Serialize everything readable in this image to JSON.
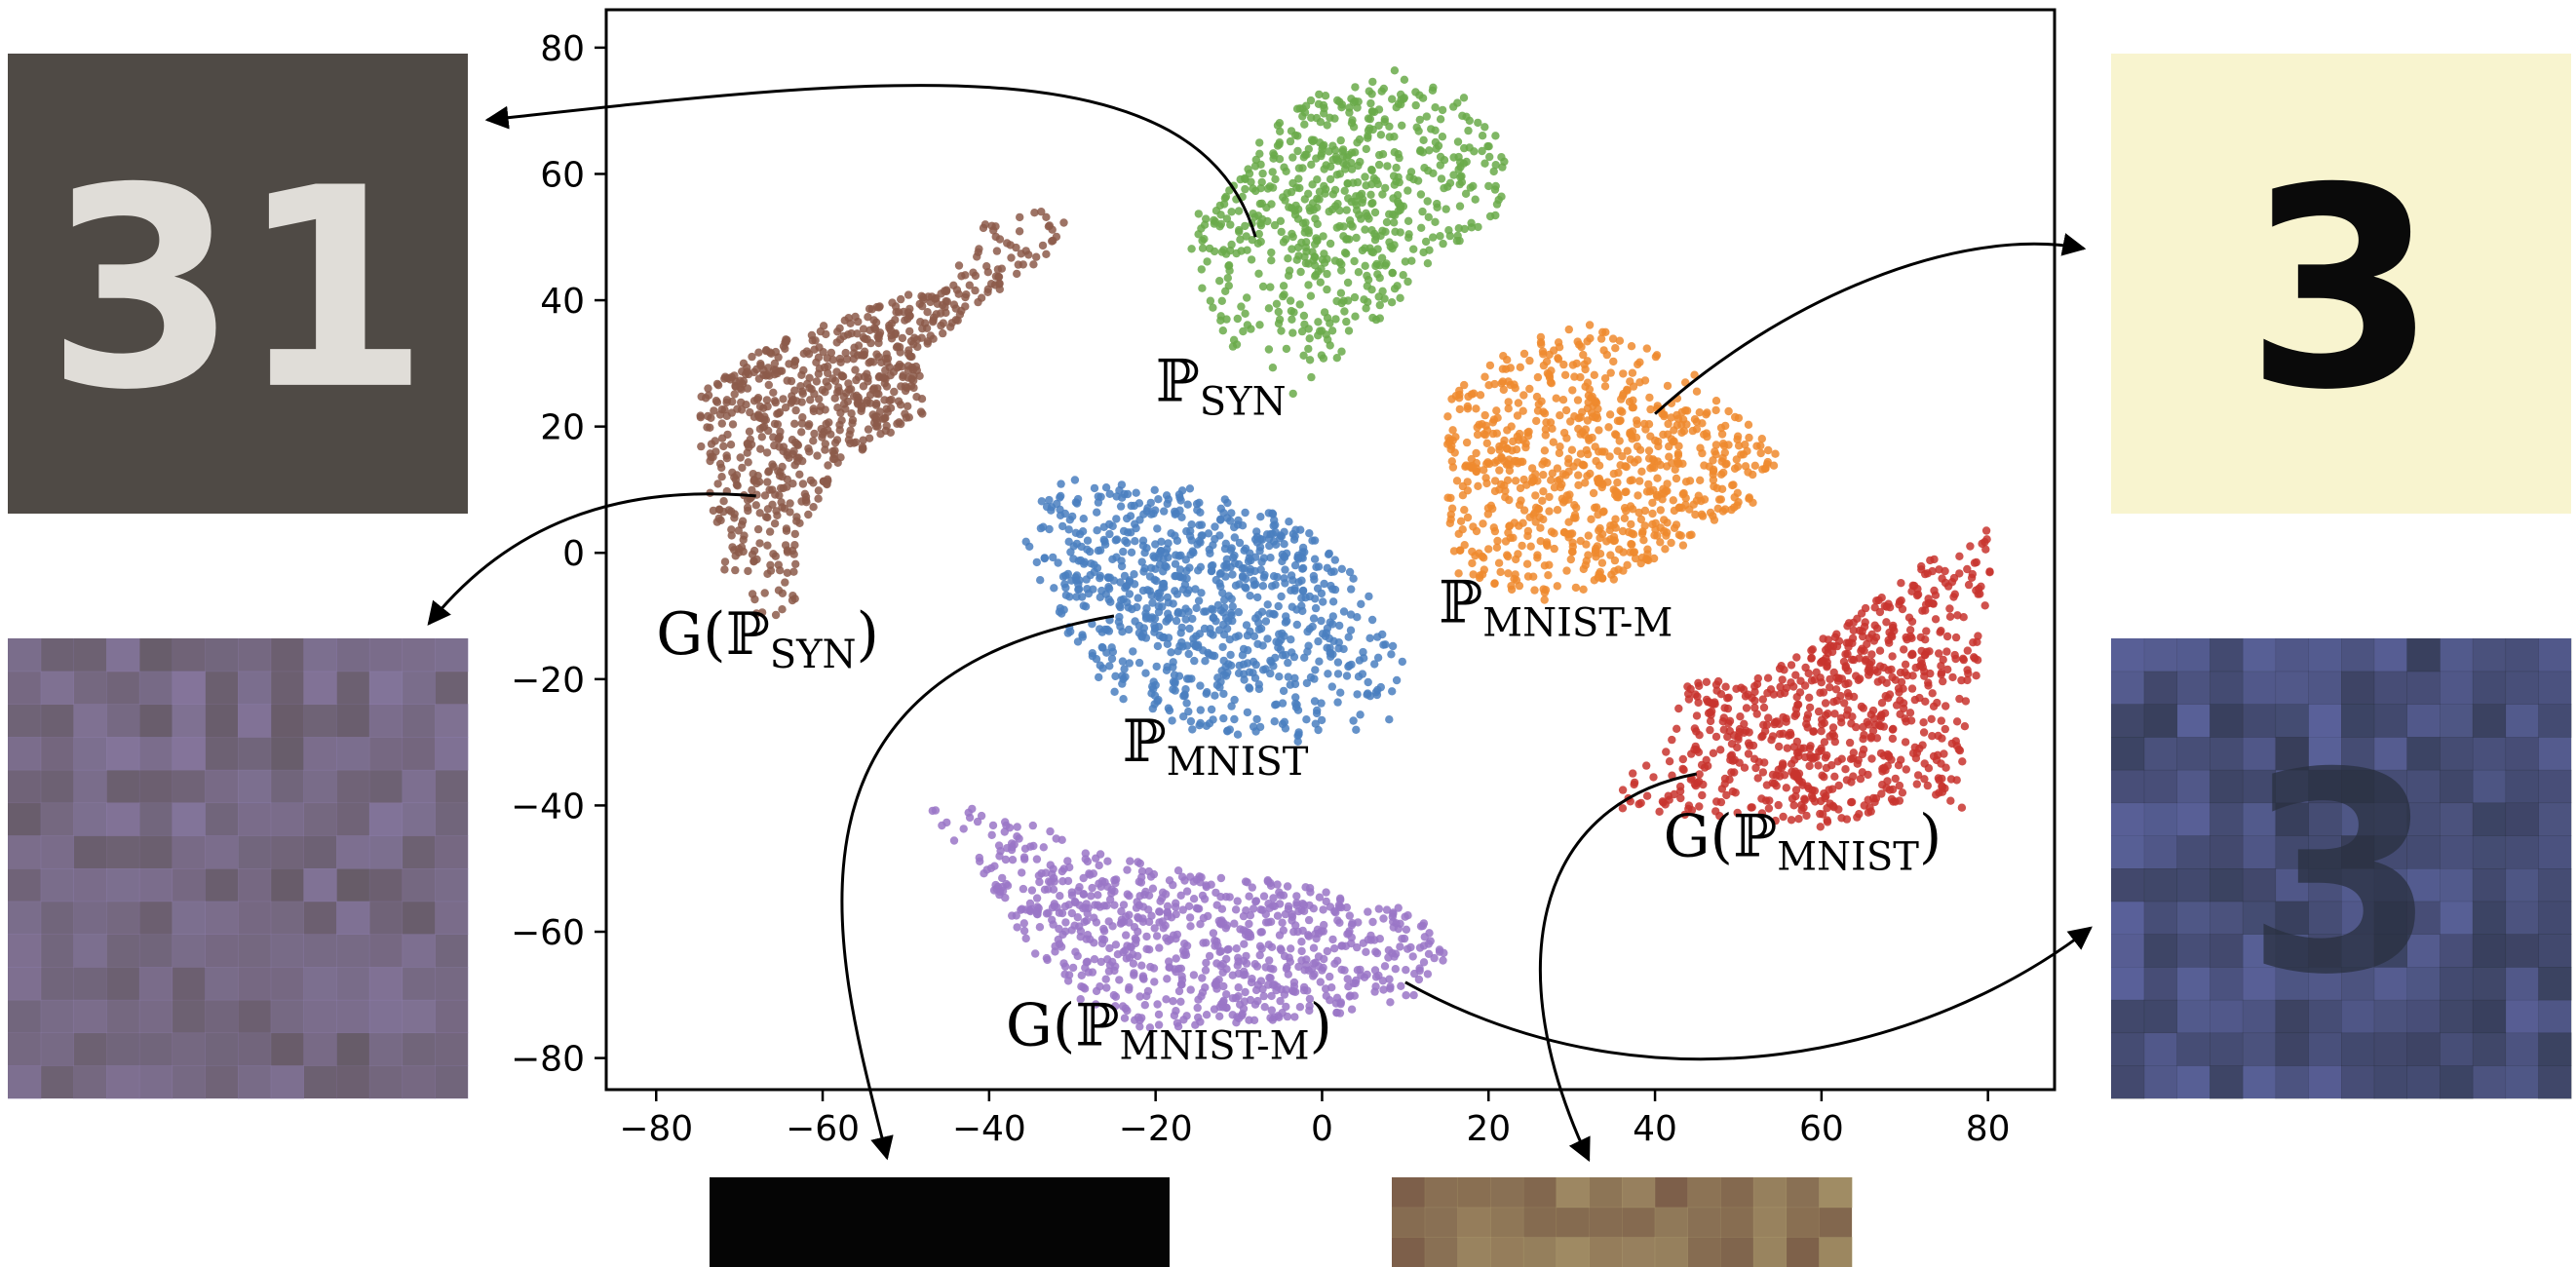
{
  "chart_data": {
    "type": "scatter",
    "title": "",
    "xlabel": "",
    "ylabel": "",
    "xlim": [
      -86,
      88
    ],
    "ylim": [
      -85,
      86
    ],
    "grid": false,
    "legend": "none",
    "x_ticks": [
      "−80",
      "−60",
      "−40",
      "−20",
      "0",
      "20",
      "40",
      "60",
      "80"
    ],
    "x_tick_values": [
      -80,
      -60,
      -40,
      -20,
      0,
      20,
      40,
      60,
      80
    ],
    "y_ticks": [
      "80",
      "60",
      "40",
      "20",
      "0",
      "−20",
      "−40",
      "−60",
      "−80"
    ],
    "y_tick_values": [
      80,
      60,
      40,
      20,
      0,
      -20,
      -40,
      -60,
      -80
    ],
    "series": [
      {
        "key": "p_syn",
        "label_main": "ℙ",
        "label_sub": "SYN",
        "label_prefix": "",
        "label_suffix": "",
        "color": "#6aaa4a",
        "center": [
          2,
          55
        ],
        "spread": [
          16,
          16
        ],
        "hull": [
          [
            -17,
            50
          ],
          [
            -10,
            62
          ],
          [
            -2,
            72
          ],
          [
            8,
            77
          ],
          [
            16,
            75
          ],
          [
            22,
            66
          ],
          [
            22,
            54
          ],
          [
            12,
            44
          ],
          [
            5,
            34
          ],
          [
            -2,
            26
          ],
          [
            -5,
            22
          ],
          [
            -10,
            30
          ],
          [
            -14,
            40
          ]
        ],
        "n": 650
      },
      {
        "key": "g_p_syn",
        "label_main": "ℙ",
        "label_sub": "SYN",
        "label_prefix": "G(",
        "label_suffix": ")",
        "color": "#8c5a4a",
        "center": [
          -57,
          25
        ],
        "spread": [
          20,
          25
        ],
        "hull": [
          [
            -75,
            25
          ],
          [
            -68,
            32
          ],
          [
            -58,
            37
          ],
          [
            -45,
            43
          ],
          [
            -40,
            53
          ],
          [
            -30,
            55
          ],
          [
            -30,
            50
          ],
          [
            -40,
            40
          ],
          [
            -48,
            32
          ],
          [
            -48,
            22
          ],
          [
            -58,
            14
          ],
          [
            -63,
            3
          ],
          [
            -63,
            -8
          ],
          [
            -68,
            -12
          ],
          [
            -71,
            -8
          ],
          [
            -73,
            5
          ],
          [
            -75,
            15
          ]
        ],
        "n": 750
      },
      {
        "key": "p_mnist",
        "label_main": "ℙ",
        "label_sub": "MNIST",
        "label_prefix": "",
        "label_suffix": "",
        "color": "#4a7fbf",
        "center": [
          -14,
          -5
        ],
        "spread": [
          20,
          16
        ],
        "hull": [
          [
            -37,
            5
          ],
          [
            -31,
            12
          ],
          [
            -24,
            11
          ],
          [
            -14,
            10
          ],
          [
            -3,
            5
          ],
          [
            5,
            -5
          ],
          [
            10,
            -18
          ],
          [
            8,
            -27
          ],
          [
            -3,
            -30
          ],
          [
            -16,
            -28
          ],
          [
            -26,
            -22
          ],
          [
            -32,
            -10
          ]
        ],
        "n": 850
      },
      {
        "key": "p_mnist_m",
        "label_main": "ℙ",
        "label_sub": "MNIST-M",
        "label_prefix": "",
        "label_suffix": "",
        "color": "#ef8a2e",
        "center": [
          32,
          12
        ],
        "spread": [
          20,
          16
        ],
        "hull": [
          [
            15,
            25
          ],
          [
            20,
            30
          ],
          [
            30,
            37
          ],
          [
            40,
            33
          ],
          [
            48,
            25
          ],
          [
            55,
            15
          ],
          [
            52,
            8
          ],
          [
            42,
            0
          ],
          [
            35,
            -5
          ],
          [
            25,
            -8
          ],
          [
            15,
            -3
          ],
          [
            15,
            8
          ]
        ],
        "n": 800
      },
      {
        "key": "g_p_mnist",
        "label_main": "ℙ",
        "label_sub": "MNIST",
        "label_prefix": "G(",
        "label_suffix": ")",
        "color": "#c8342e",
        "center": [
          58,
          -20
        ],
        "spread": [
          22,
          25
        ],
        "hull": [
          [
            32,
            -40
          ],
          [
            40,
            -32
          ],
          [
            44,
            -20
          ],
          [
            52,
            -20
          ],
          [
            62,
            -12
          ],
          [
            72,
            -2
          ],
          [
            78,
            7
          ],
          [
            81,
            2
          ],
          [
            80,
            -12
          ],
          [
            77,
            -30
          ],
          [
            77,
            -42
          ],
          [
            70,
            -40
          ],
          [
            62,
            -44
          ],
          [
            52,
            -42
          ],
          [
            42,
            -42
          ]
        ],
        "n": 750
      },
      {
        "key": "g_p_mnist_m",
        "label_main": "ℙ",
        "label_sub": "MNIST-M",
        "label_prefix": "G(",
        "label_suffix": ")",
        "color": "#9a76c7",
        "center": [
          -14,
          -58
        ],
        "spread": [
          30,
          14
        ],
        "hull": [
          [
            -48,
            -38
          ],
          [
            -40,
            -38
          ],
          [
            -30,
            -46
          ],
          [
            -18,
            -50
          ],
          [
            -5,
            -52
          ],
          [
            12,
            -57
          ],
          [
            15,
            -64
          ],
          [
            10,
            -72
          ],
          [
            -5,
            -74
          ],
          [
            -22,
            -76
          ],
          [
            -30,
            -70
          ],
          [
            -36,
            -62
          ],
          [
            -40,
            -52
          ],
          [
            -48,
            -42
          ]
        ],
        "n": 800
      }
    ]
  },
  "thumbnails": [
    {
      "key": "syn_sample",
      "digits": "31",
      "bg": "#4f4a45",
      "fg": "#e0ddd8"
    },
    {
      "key": "gen_syn_sample",
      "digits": "",
      "bg": "#5a5050",
      "fg": "#8f7fb0"
    },
    {
      "key": "mnist_m_sample",
      "digits": "3",
      "bg": "#f8f4cf",
      "fg": "#0a0a0a"
    },
    {
      "key": "gen_mnist_sample",
      "digits": "3",
      "bg": "#6a72b8",
      "fg": "#2a3040"
    },
    {
      "key": "mnist_sample",
      "digits": "",
      "bg": "#050505",
      "fg": "#e8e8e8"
    },
    {
      "key": "gen_mnist_m_sample",
      "digits": "",
      "bg": "#6b4a3d",
      "fg": "#b0a070"
    }
  ]
}
